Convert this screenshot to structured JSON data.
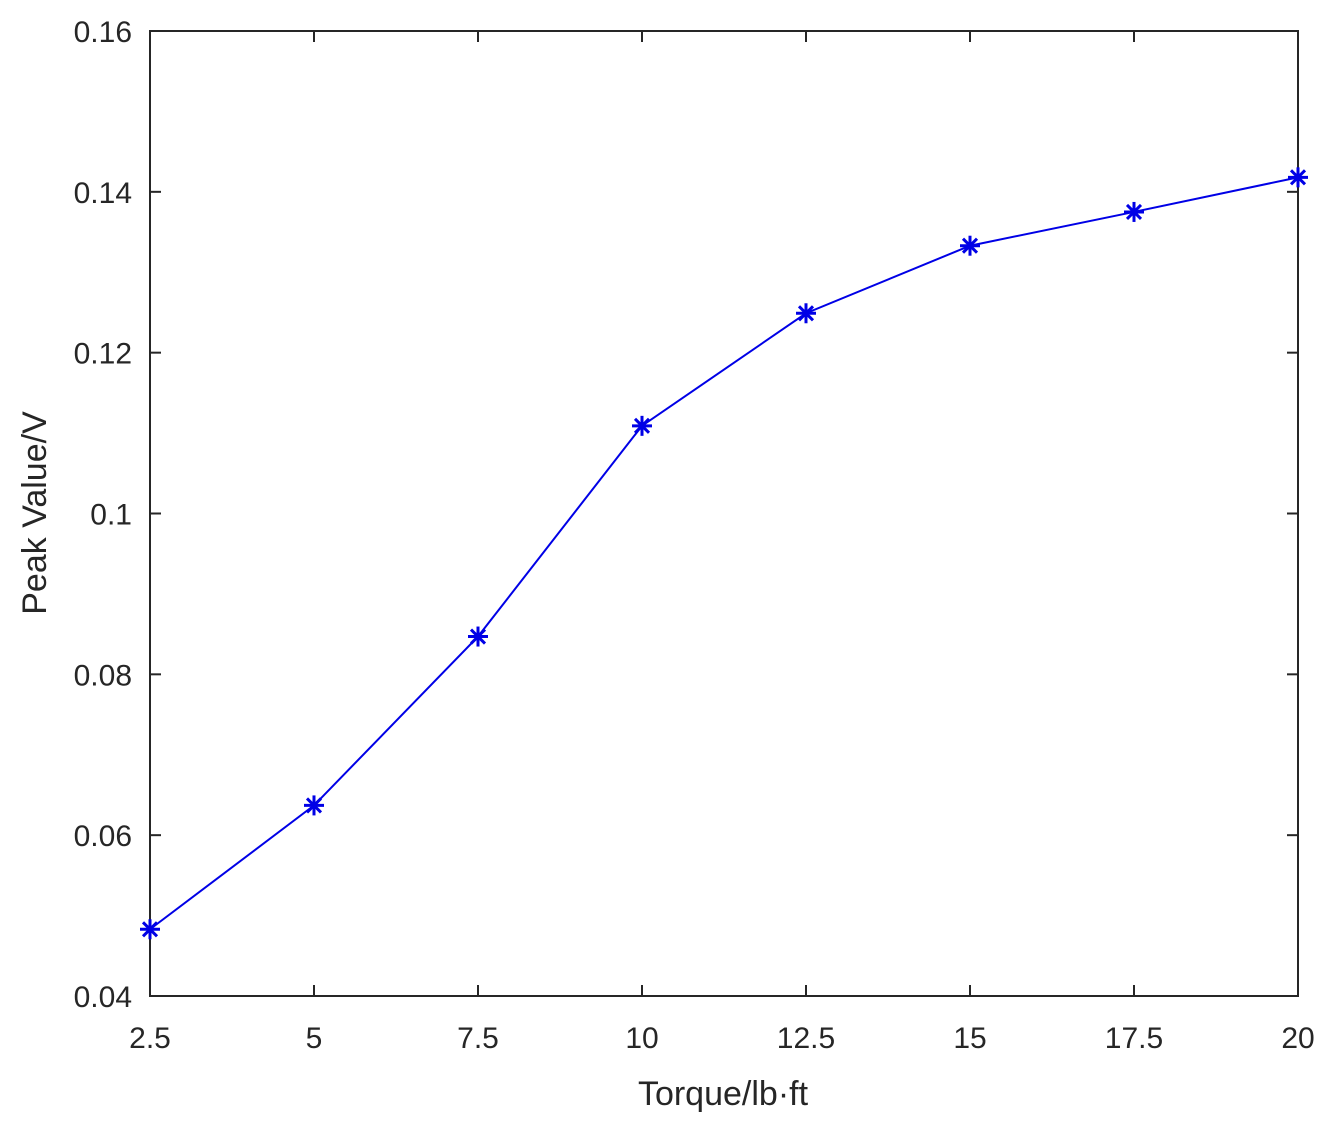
{
  "chart_data": {
    "type": "line",
    "title": "",
    "xlabel": "Torque/lb·ft",
    "ylabel": "Peak Value/V",
    "xlim": [
      2.5,
      20
    ],
    "ylim": [
      0.04,
      0.16
    ],
    "xticks": [
      2.5,
      5,
      7.5,
      10,
      12.5,
      15,
      17.5,
      20
    ],
    "xtick_labels": [
      "2.5",
      "5",
      "7.5",
      "10",
      "12.5",
      "15",
      "17.5",
      "20"
    ],
    "yticks": [
      0.04,
      0.06,
      0.08,
      0.1,
      0.12,
      0.14,
      0.16
    ],
    "ytick_labels": [
      "0.04",
      "0.06",
      "0.08",
      "0.1",
      "0.12",
      "0.14",
      "0.16"
    ],
    "grid": false,
    "box": true,
    "series": [
      {
        "color": "#0000e6",
        "marker": "asterisk",
        "x": [
          2.5,
          5,
          7.5,
          10,
          12.5,
          15,
          17.5,
          20
        ],
        "y": [
          0.0483,
          0.0637,
          0.0847,
          0.1109,
          0.1249,
          0.1333,
          0.1375,
          0.1418
        ]
      }
    ]
  }
}
